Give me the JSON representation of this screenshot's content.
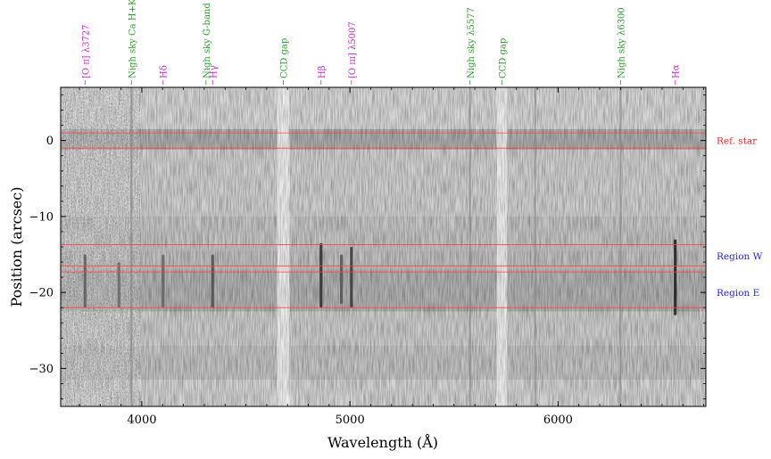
{
  "chart_data": {
    "type": "heatmap",
    "title": "",
    "xlabel": "Wavelength (Å)",
    "ylabel": "Position (arcsec)",
    "xlim": [
      3610,
      6710
    ],
    "ylim": [
      -35,
      7
    ],
    "xticks": [
      4000,
      5000,
      6000
    ],
    "yticks": [
      0,
      -10,
      -20,
      -30
    ],
    "colormap": "gray_r",
    "colors": {
      "frame": "#000000",
      "region_line": "#ff4444",
      "emission_label": "#d020d0",
      "sky_label": "#2a9a2a",
      "ref_label": "#ff2020",
      "region_label": "#2222ee"
    },
    "line_labels": [
      {
        "text": "[O ɪɪ] λ3727",
        "x": 3727,
        "kind": "emission"
      },
      {
        "text": "Nigh sky Ca H+K",
        "x": 3950,
        "kind": "sky"
      },
      {
        "text": "Hδ",
        "x": 4102,
        "kind": "emission"
      },
      {
        "text": "Nigh sky G-band",
        "x": 4308,
        "kind": "sky"
      },
      {
        "text": "Hγ",
        "x": 4340,
        "kind": "emission"
      },
      {
        "text": "CCD gap",
        "x": 4680,
        "kind": "sky"
      },
      {
        "text": "Hβ",
        "x": 4861,
        "kind": "emission"
      },
      {
        "text": "[O ɪɪɪ] λ5007",
        "x": 5007,
        "kind": "emission"
      },
      {
        "text": "Nigh sky λ5577",
        "x": 5577,
        "kind": "sky"
      },
      {
        "text": "CCD gap",
        "x": 5730,
        "kind": "sky"
      },
      {
        "text": "Nigh sky λ6300",
        "x": 6300,
        "kind": "sky"
      },
      {
        "text": "Hα",
        "x": 6563,
        "kind": "emission"
      }
    ],
    "regions": [
      {
        "name": "Ref. star",
        "y_range": [
          -1,
          1
        ],
        "label_kind": "ref"
      },
      {
        "name": "Region W",
        "y_range": [
          -16.5,
          -13.7
        ],
        "label_kind": "region"
      },
      {
        "name": "Region E",
        "y_range": [
          -22,
          -17.3
        ],
        "label_kind": "region"
      }
    ],
    "emission_features": [
      {
        "x": 3727,
        "y_range": [
          -22,
          -15
        ],
        "strength": 0.35
      },
      {
        "x": 3890,
        "y_range": [
          -22,
          -16
        ],
        "strength": 0.25
      },
      {
        "x": 4102,
        "y_range": [
          -22,
          -15
        ],
        "strength": 0.3
      },
      {
        "x": 4340,
        "y_range": [
          -22,
          -15
        ],
        "strength": 0.5
      },
      {
        "x": 4861,
        "y_range": [
          -22,
          -13.5
        ],
        "strength": 0.8
      },
      {
        "x": 4959,
        "y_range": [
          -21.5,
          -15
        ],
        "strength": 0.45
      },
      {
        "x": 5007,
        "y_range": [
          -22,
          -14
        ],
        "strength": 0.7
      },
      {
        "x": 6563,
        "y_range": [
          -23,
          -13
        ],
        "strength": 0.95
      }
    ],
    "sky_features": [
      {
        "x": 3950,
        "width": 10,
        "kind": "dark"
      },
      {
        "x": 5577,
        "width": 8,
        "kind": "dark"
      },
      {
        "x": 5890,
        "width": 6,
        "kind": "dark"
      },
      {
        "x": 6300,
        "width": 8,
        "kind": "dark"
      },
      {
        "x": 4680,
        "width": 60,
        "kind": "gap"
      },
      {
        "x": 5730,
        "width": 50,
        "kind": "gap"
      }
    ]
  }
}
